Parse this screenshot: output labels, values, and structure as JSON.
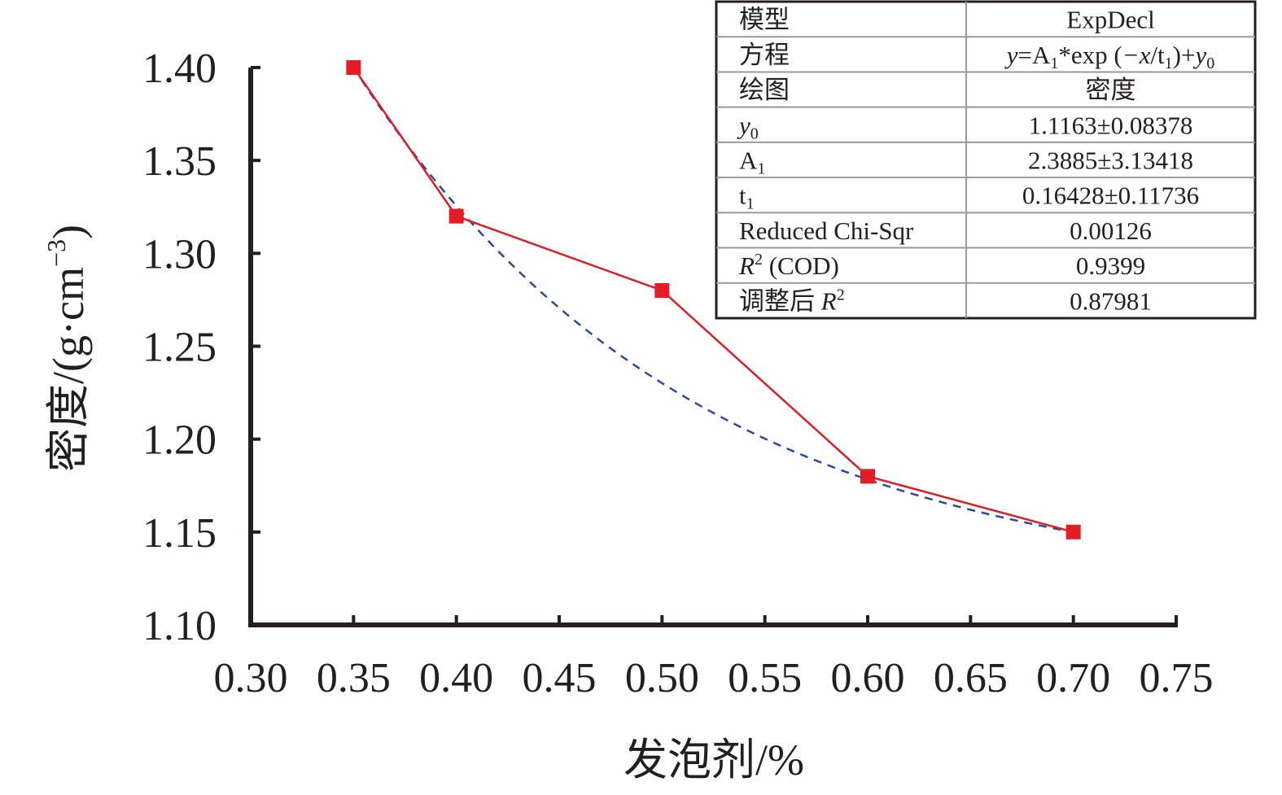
{
  "chart_data": {
    "type": "line",
    "xlabel": "发泡剂/%",
    "ylabel": "密度/(g·cm",
    "ylabel_sup": "−3",
    "ylabel_close": ")",
    "xlim": [
      0.3,
      0.75
    ],
    "ylim": [
      1.1,
      1.4
    ],
    "x_ticks": [
      "0.30",
      "0.35",
      "0.40",
      "0.45",
      "0.50",
      "0.55",
      "0.60",
      "0.65",
      "0.70",
      "0.75"
    ],
    "y_ticks": [
      "1.10",
      "1.15",
      "1.20",
      "1.25",
      "1.30",
      "1.35",
      "1.40"
    ],
    "series": [
      {
        "style": "solid-with-square-markers",
        "color": "#d62027",
        "marker_color": "#e31e24",
        "x": [
          0.35,
          0.4,
          0.5,
          0.6,
          0.7
        ],
        "y": [
          1.4,
          1.32,
          1.28,
          1.18,
          1.15
        ]
      },
      {
        "style": "dashed-fit",
        "color": "#2b4a9a",
        "model": "ExpDecl",
        "params": {
          "y0": 1.1163,
          "A1": 2.3885,
          "t1": 0.16428
        }
      }
    ],
    "fit_table": {
      "rows": [
        {
          "label": "模型",
          "value": "ExpDecl"
        },
        {
          "label": "方程",
          "value": "",
          "eq": [
            "y",
            "=A",
            "1",
            "*exp (",
            "−x",
            "/t",
            "1",
            ")+",
            "y",
            "0"
          ]
        },
        {
          "label": "绘图",
          "value": "密度"
        },
        {
          "label_parts": [
            "y",
            "0"
          ],
          "value": "1.1163±0.08378"
        },
        {
          "label_parts": [
            "A",
            "1"
          ],
          "value": "2.3885±3.13418"
        },
        {
          "label_parts": [
            "t",
            "1"
          ],
          "value": "0.16428±0.11736"
        },
        {
          "label": "Reduced Chi-Sqr",
          "value": "0.00126"
        },
        {
          "label_parts": [
            "R",
            "2",
            " (COD)"
          ],
          "value": "0.9399"
        },
        {
          "label_parts": [
            "调整后 ",
            "R",
            "2"
          ],
          "value": "0.87981"
        }
      ]
    }
  }
}
